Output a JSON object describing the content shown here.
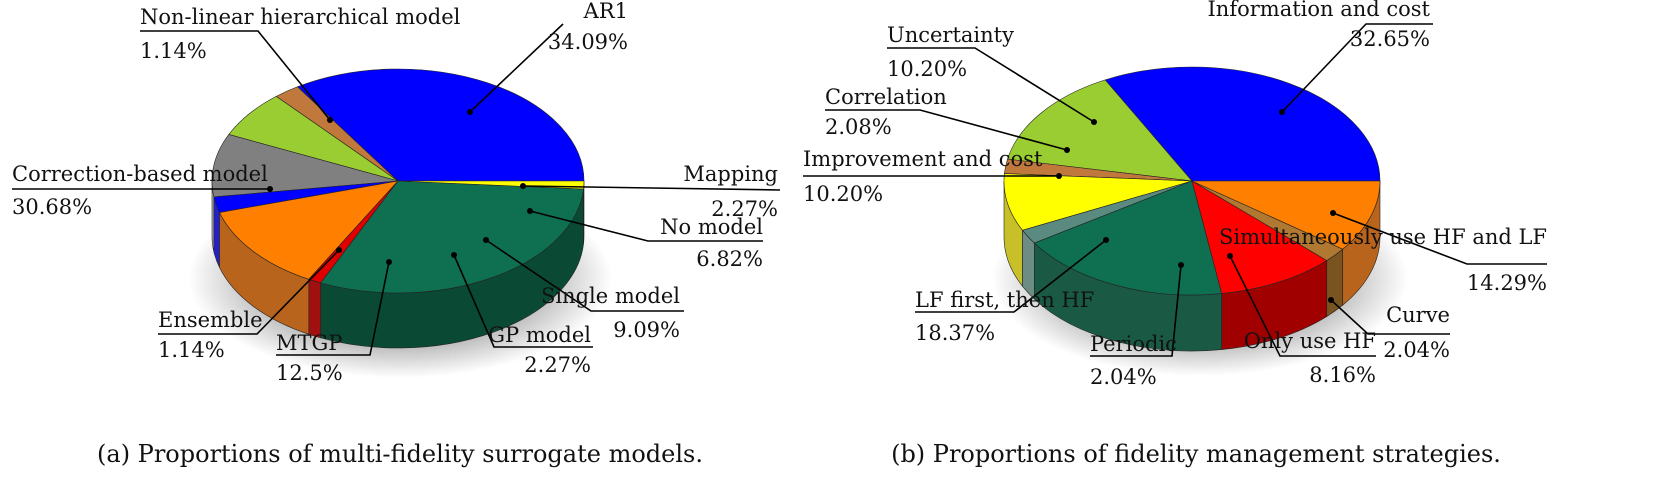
{
  "chart_data": [
    {
      "type": "pie",
      "caption": "(a) Proportions of multi-fidelity surrogate models.",
      "slices": [
        {
          "label": "AR1",
          "value": 34.09,
          "pct_text": "34.09%",
          "color": "#0000ff",
          "side": "#0000aa"
        },
        {
          "label": "Mapping",
          "value": 2.27,
          "pct_text": "2.27%",
          "color": "#c0783c",
          "side": "#8a5226"
        },
        {
          "label": "No model",
          "value": 6.82,
          "pct_text": "6.82%",
          "color": "#9acd32",
          "side": "#86a84a"
        },
        {
          "label": "Single model",
          "value": 9.09,
          "pct_text": "9.09%",
          "color": "#808080",
          "side": "#b4b4b4"
        },
        {
          "label": "GP model",
          "value": 2.27,
          "pct_text": "2.27%",
          "color": "#0000ff",
          "side": "#2222c8"
        },
        {
          "label": "MTGP",
          "value": 12.5,
          "pct_text": "12.5%",
          "color": "#ff8000",
          "side": "#b8641c"
        },
        {
          "label": "Ensemble",
          "value": 1.14,
          "pct_text": "1.14%",
          "color": "#e00000",
          "side": "#a01010"
        },
        {
          "label": "Correction-based model",
          "value": 30.68,
          "pct_text": "30.68%",
          "color": "#0e7050",
          "side": "#0a4a35"
        },
        {
          "label": "Non-linear hierarchical model",
          "value": 1.14,
          "pct_text": "1.14%",
          "color": "#ffff00",
          "side": "#bbbb00"
        }
      ]
    },
    {
      "type": "pie",
      "caption": "(b) Proportions of fidelity management strategies.",
      "slices": [
        {
          "label": "Information and cost",
          "value": 32.65,
          "pct_text": "32.65%",
          "color": "#0000ff",
          "side": "#0000aa"
        },
        {
          "label": "Simultaneously use HF and LF",
          "value": 14.29,
          "pct_text": "14.29%",
          "color": "#9acd32",
          "side": "#86a84a"
        },
        {
          "label": "Curve",
          "value": 2.04,
          "pct_text": "2.04%",
          "color": "#c0783c",
          "side": "#a06a40"
        },
        {
          "label": "Only use HF",
          "value": 8.16,
          "pct_text": "8.16%",
          "color": "#ffff00",
          "side": "#c8c028"
        },
        {
          "label": "Periodic",
          "value": 2.04,
          "pct_text": "2.04%",
          "color": "#5a8a80",
          "side": "#6c8c84"
        },
        {
          "label": "LF first, then HF",
          "value": 18.37,
          "pct_text": "18.37%",
          "color": "#0e7050",
          "side": "#1a5a44"
        },
        {
          "label": "Improvement and cost",
          "value": 10.2,
          "pct_text": "10.20%",
          "color": "#ff0000",
          "side": "#a00000"
        },
        {
          "label": "Correlation",
          "value": 2.08,
          "pct_text": "2.08%",
          "color": "#b07830",
          "side": "#7a5420"
        },
        {
          "label": "Uncertainty",
          "value": 10.2,
          "pct_text": "10.20%",
          "color": "#ff8000",
          "side": "#b8641c"
        }
      ]
    }
  ]
}
